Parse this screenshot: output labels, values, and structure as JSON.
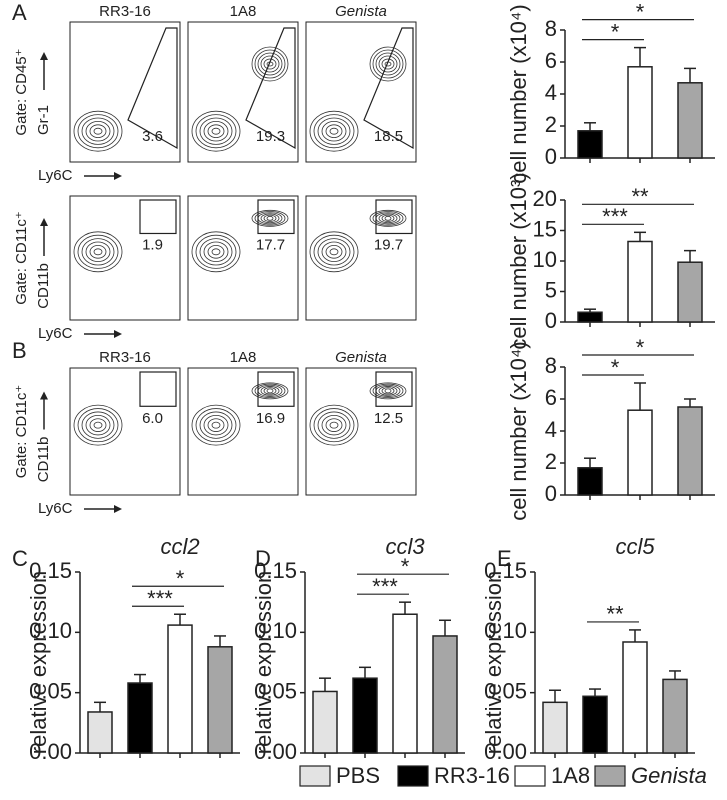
{
  "panel_letters": {
    "a": "A",
    "b": "B"
  },
  "flow_rows": [
    {
      "gate": "Gate: CD45⁺",
      "yaxis": "Gr-1",
      "xaxis": "Ly6C",
      "columns": [
        "RR3-16",
        "1A8",
        "Genista"
      ],
      "percents": [
        "3.6",
        "19.3",
        "18.5"
      ]
    },
    {
      "gate": "Gate: CD11c⁺",
      "yaxis": "CD11b",
      "xaxis": "Ly6C",
      "percents": [
        "1.9",
        "17.7",
        "19.7"
      ]
    },
    {
      "gate": "Gate: CD11c⁺",
      "yaxis": "CD11b",
      "xaxis": "Ly6C",
      "columns": [
        "RR3-16",
        "1A8",
        "Genista"
      ],
      "percents": [
        "6.0",
        "16.9",
        "12.5"
      ]
    }
  ],
  "legend": [
    {
      "name": "PBS",
      "color": "#e3e3e3"
    },
    {
      "name": "RR3-16",
      "color": "#000000"
    },
    {
      "name": "1A8",
      "color": "#ffffff"
    },
    {
      "name": "Genista",
      "color": "#a6a6a6"
    }
  ],
  "chart_data": [
    {
      "type": "bar",
      "ylabel": "cell number (x10⁴)",
      "categories": [
        null,
        null,
        null
      ],
      "values": [
        1.7,
        5.7,
        4.7
      ],
      "errors": [
        0.5,
        1.2,
        0.9
      ],
      "colors": [
        "#000000",
        "#ffffff",
        "#a6a6a6"
      ],
      "ylim": [
        0,
        8
      ],
      "yticks": [
        0,
        2,
        4,
        6,
        8
      ],
      "annotations": [
        {
          "from": 0,
          "to": 1,
          "label": "*"
        },
        {
          "from": 0,
          "to": 2,
          "label": "*"
        }
      ]
    },
    {
      "type": "bar",
      "ylabel": "cell number (x10³)",
      "categories": [
        null,
        null,
        null
      ],
      "values": [
        1.6,
        13.2,
        9.8
      ],
      "errors": [
        0.5,
        1.5,
        1.9
      ],
      "colors": [
        "#000000",
        "#ffffff",
        "#a6a6a6"
      ],
      "ylim": [
        0,
        20
      ],
      "yticks": [
        0,
        5,
        10,
        15,
        20
      ],
      "annotations": [
        {
          "from": 0,
          "to": 1,
          "label": "***"
        },
        {
          "from": 0,
          "to": 2,
          "label": "**"
        }
      ]
    },
    {
      "type": "bar",
      "ylabel": "cell number (x10⁴)",
      "categories": [
        null,
        null,
        null
      ],
      "values": [
        1.7,
        5.3,
        5.5
      ],
      "errors": [
        0.6,
        1.7,
        0.5
      ],
      "colors": [
        "#000000",
        "#ffffff",
        "#a6a6a6"
      ],
      "ylim": [
        0,
        8
      ],
      "yticks": [
        0,
        2,
        4,
        6,
        8
      ],
      "annotations": [
        {
          "from": 0,
          "to": 1,
          "label": "*"
        },
        {
          "from": 0,
          "to": 2,
          "label": "*"
        }
      ]
    },
    {
      "type": "bar",
      "letter": "C",
      "title": "ccl2",
      "ylabel": "relative expression",
      "categories": [
        null,
        null,
        null,
        null
      ],
      "values": [
        0.034,
        0.058,
        0.106,
        0.088
      ],
      "errors": [
        0.008,
        0.007,
        0.009,
        0.009
      ],
      "colors": [
        "#e3e3e3",
        "#000000",
        "#ffffff",
        "#a6a6a6"
      ],
      "ylim": [
        0,
        0.15
      ],
      "yticks": [
        {
          "value": 0,
          "label": "0.00"
        },
        0.05,
        {
          "value": 0.1,
          "label": "0.10"
        },
        0.15
      ],
      "annotations": [
        {
          "from": 1,
          "to": 2,
          "label": "***"
        },
        {
          "from": 1,
          "to": 3,
          "label": "*"
        }
      ]
    },
    {
      "type": "bar",
      "letter": "D",
      "title": "ccl3",
      "ylabel": "relative expression",
      "categories": [
        null,
        null,
        null,
        null
      ],
      "values": [
        0.051,
        0.062,
        0.115,
        0.097
      ],
      "errors": [
        0.011,
        0.009,
        0.01,
        0.013
      ],
      "colors": [
        "#e3e3e3",
        "#000000",
        "#ffffff",
        "#a6a6a6"
      ],
      "ylim": [
        0,
        0.15
      ],
      "yticks": [
        {
          "value": 0,
          "label": "0.00"
        },
        0.05,
        {
          "value": 0.1,
          "label": "0.10"
        },
        0.15
      ],
      "annotations": [
        {
          "from": 1,
          "to": 2,
          "label": "***"
        },
        {
          "from": 1,
          "to": 3,
          "label": "*"
        }
      ]
    },
    {
      "type": "bar",
      "letter": "E",
      "title": "ccl5",
      "ylabel": "relative expression",
      "categories": [
        null,
        null,
        null,
        null
      ],
      "values": [
        0.042,
        0.047,
        0.092,
        0.061
      ],
      "errors": [
        0.01,
        0.006,
        0.01,
        0.007
      ],
      "colors": [
        "#e3e3e3",
        "#000000",
        "#ffffff",
        "#a6a6a6"
      ],
      "ylim": [
        0,
        0.15
      ],
      "yticks": [
        {
          "value": 0,
          "label": "0.00"
        },
        0.05,
        {
          "value": 0.1,
          "label": "0.10"
        },
        0.15
      ],
      "annotations": [
        {
          "from": 1,
          "to": 2,
          "label": "**"
        }
      ]
    }
  ]
}
